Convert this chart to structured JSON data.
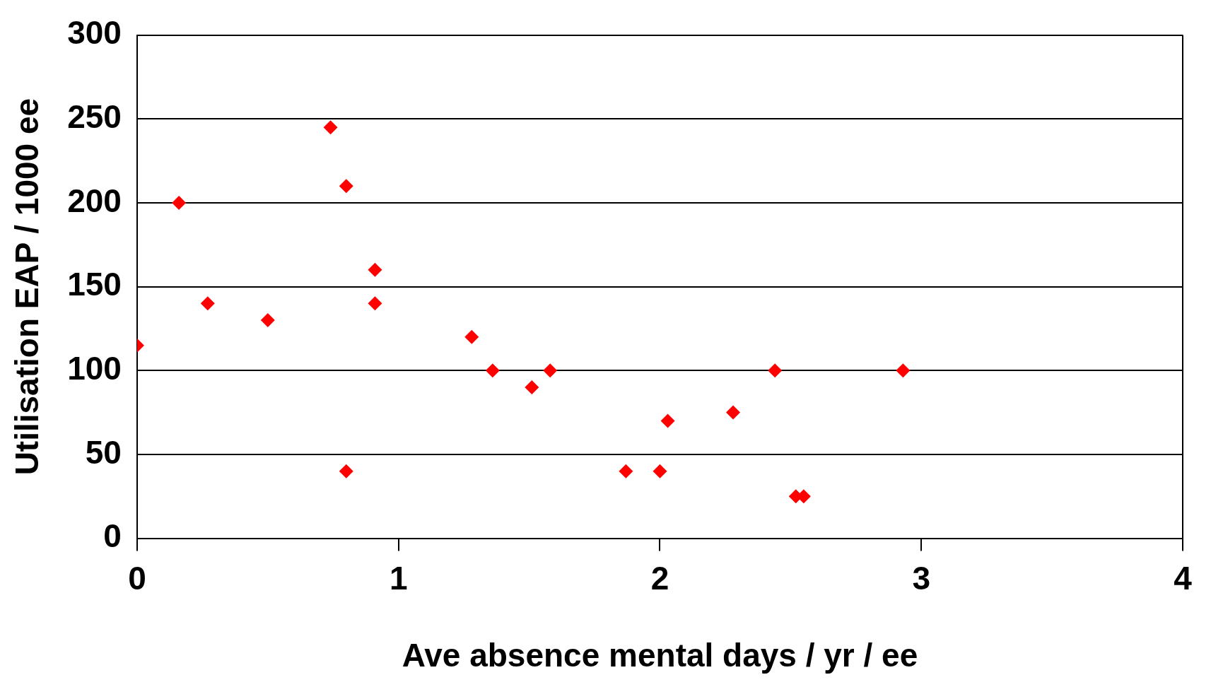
{
  "chart_data": {
    "type": "scatter",
    "xlabel": "Ave absence mental days / yr / ee",
    "ylabel": "Utilisation EAP / 1000 ee",
    "x": [
      0,
      0.16,
      0.27,
      0.5,
      0.74,
      0.8,
      0.8,
      0.91,
      0.91,
      1.28,
      1.36,
      1.51,
      1.58,
      1.87,
      2.0,
      2.03,
      2.28,
      2.44,
      2.52,
      2.55,
      2.93
    ],
    "series": [
      {
        "color": "#ff0000",
        "values": [
          115,
          200,
          140,
          130,
          245,
          210,
          40,
          160,
          140,
          120,
          100,
          90,
          100,
          40,
          40,
          70,
          75,
          100,
          25,
          25,
          100
        ]
      }
    ],
    "xlim": [
      0,
      4
    ],
    "xticks": [
      0,
      1,
      2,
      3,
      4
    ],
    "ylim": [
      0,
      300
    ],
    "yticks": [
      0,
      50,
      100,
      150,
      200,
      250,
      300
    ],
    "grid": "y",
    "legend": false,
    "marker": "diamond"
  }
}
